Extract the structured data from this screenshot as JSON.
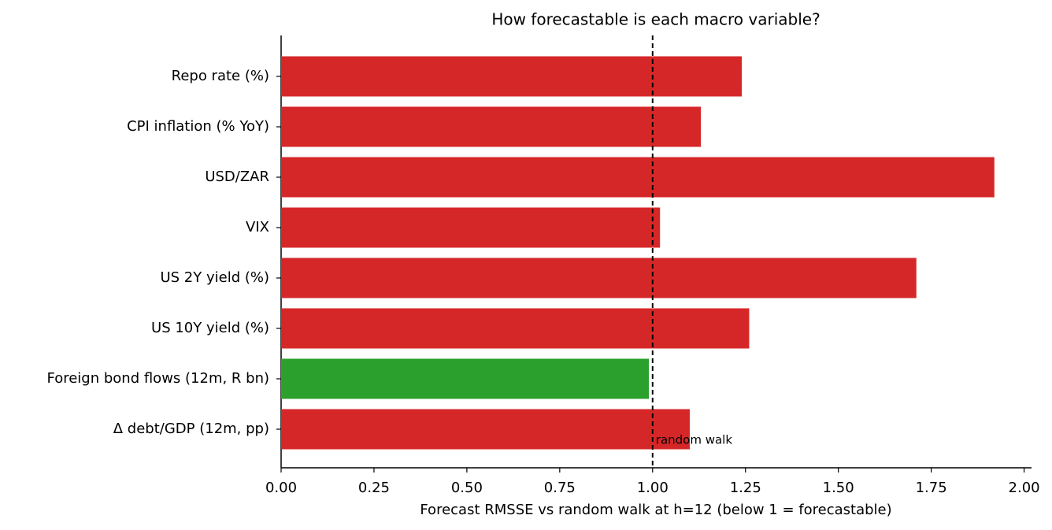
{
  "chart_data": {
    "type": "barh",
    "title": "How forecastable is each macro variable?",
    "x_label": "Forecast RMSSE vs random walk at h=12 (below 1 = forecastable)",
    "categories": [
      "Repo rate (%)",
      "CPI inflation (% YoY)",
      "USD/ZAR",
      "VIX",
      "US 2Y yield (%)",
      "US 10Y yield (%)",
      "Foreign bond flows (12m, R bn)",
      "Δ debt/GDP (12m, pp)"
    ],
    "values": [
      1.24,
      1.13,
      1.92,
      1.02,
      1.71,
      1.26,
      0.99,
      1.1
    ],
    "colors": [
      "#d62728",
      "#d62728",
      "#d62728",
      "#d62728",
      "#d62728",
      "#d62728",
      "#2ca02c",
      "#d62728"
    ],
    "xlim": [
      0,
      2.02
    ],
    "xticks": [
      {
        "value": 0,
        "label": "0.00"
      },
      {
        "value": 0.25,
        "label": "0.25"
      },
      {
        "value": 0.5,
        "label": "0.50"
      },
      {
        "value": 0.75,
        "label": "0.75"
      },
      {
        "value": 1,
        "label": "1.00"
      },
      {
        "value": 1.25,
        "label": "1.25"
      },
      {
        "value": 1.5,
        "label": "1.50"
      },
      {
        "value": 1.75,
        "label": "1.75"
      },
      {
        "value": 2,
        "label": "2.00"
      }
    ],
    "reference_line": {
      "value": 1,
      "label": "random walk",
      "color": "#000000"
    },
    "grid": false
  }
}
